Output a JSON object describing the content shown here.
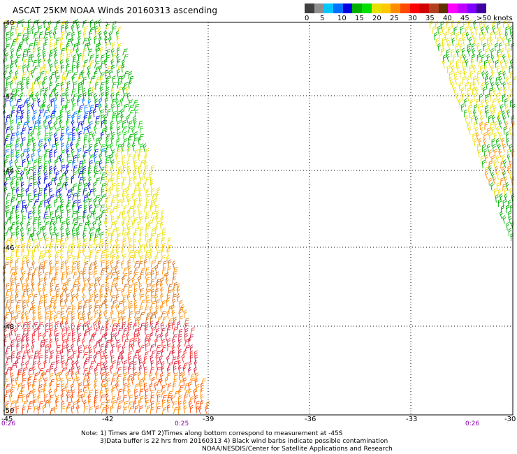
{
  "title": "ASCAT 25KM NOAA Winds 20160313 ascending",
  "colorbar": {
    "colors": [
      "#404040",
      "#909090",
      "#00c8ff",
      "#0070ff",
      "#0000e0",
      "#00b000",
      "#00e000",
      "#e8e000",
      "#ffc800",
      "#ff8c00",
      "#ff4800",
      "#ff0000",
      "#d00000",
      "#b04020",
      "#603000",
      "#ff00ff",
      "#c000ff",
      "#8000ff",
      "#4000a0"
    ],
    "labels": [
      "0",
      "5",
      "10",
      "15",
      "20",
      "25",
      "30",
      "35",
      "40",
      "45",
      ">50 knots"
    ]
  },
  "lat_labels": [
    "-40",
    "-42",
    "-44",
    "-46",
    "-48",
    "-50"
  ],
  "lon_labels": [
    "-45",
    "-42",
    "-39",
    "-36",
    "-33",
    "-30"
  ],
  "time_labels": [
    "0:26",
    "0:25",
    "0:26"
  ],
  "notes": {
    "line1": "Note: 1) Times are GMT 2)Times along bottom correspond to measurement at -45S",
    "line2": "3)Data buffer is 22 hrs from 20160313 4) Black wind barbs indicate possible contamination",
    "line3": "NOAA/NESDIS/Center for Satellite Applications and Research"
  }
}
